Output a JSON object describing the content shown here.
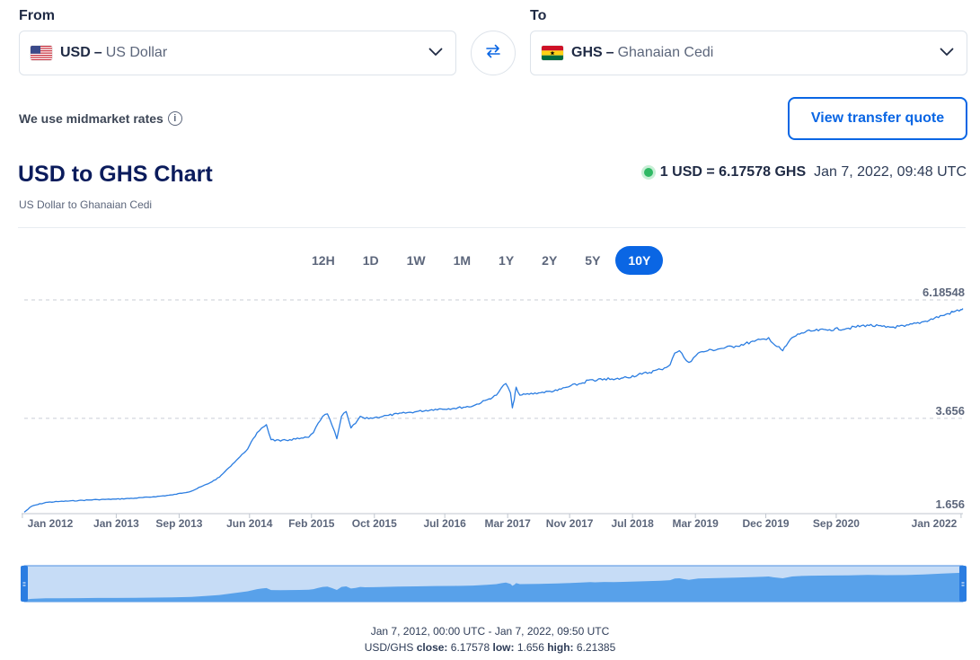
{
  "from": {
    "label": "From",
    "code": "USD",
    "sep": "–",
    "name": "US Dollar"
  },
  "to": {
    "label": "To",
    "code": "GHS",
    "sep": "–",
    "name": "Ghanaian Cedi"
  },
  "info_text": "We use midmarket rates",
  "quote_button": "View transfer quote",
  "title": "USD to GHS Chart",
  "subtitle": "US Dollar to Ghanaian Cedi",
  "rate": {
    "value": "1 USD = 6.17578 GHS",
    "time": "Jan 7, 2022, 09:48 UTC"
  },
  "ranges": [
    "12H",
    "1D",
    "1W",
    "1M",
    "1Y",
    "2Y",
    "5Y",
    "10Y"
  ],
  "active_range": "10Y",
  "colors": {
    "accent": "#0a66e4",
    "line": "#2b7de1",
    "navigator_fill": "#c6dcf6",
    "navigator_area": "#58a1ea",
    "live_dot": "#2fb964"
  },
  "chart_data": {
    "type": "line",
    "title": "USD to GHS Chart",
    "xlabel": "",
    "ylabel": "",
    "grid": true,
    "y_ticks": [
      "6.18548",
      "3.656",
      "1.656"
    ],
    "y_tick_values": [
      6.18548,
      3.656,
      1.656
    ],
    "x_ticks": [
      "Jan 2012",
      "Jan 2013",
      "Sep 2013",
      "Jun 2014",
      "Feb 2015",
      "Oct 2015",
      "Jul 2016",
      "Mar 2017",
      "Nov 2017",
      "Jul 2018",
      "Mar 2019",
      "Dec 2019",
      "Sep 2020",
      "Jan 2022"
    ],
    "x_tick_values": [
      2012.0,
      2013.0,
      2013.67,
      2014.42,
      2015.08,
      2015.75,
      2016.5,
      2017.17,
      2017.83,
      2018.5,
      2019.17,
      2019.92,
      2020.67,
      2022.0
    ],
    "x_range": [
      2012.02,
      2022.02
    ],
    "ylim": [
      1.62,
      6.3
    ],
    "series": [
      {
        "x": [
          2012.02,
          2012.1,
          2012.25,
          2012.4,
          2012.6,
          2012.8,
          2013.0,
          2013.2,
          2013.4,
          2013.6,
          2013.8,
          2014.0,
          2014.1,
          2014.2,
          2014.3,
          2014.4,
          2014.5,
          2014.55,
          2014.6,
          2014.65,
          2014.75,
          2014.85,
          2014.95,
          2015.05,
          2015.1,
          2015.15,
          2015.2,
          2015.25,
          2015.3,
          2015.35,
          2015.4,
          2015.45,
          2015.5,
          2015.55,
          2015.6,
          2015.65,
          2015.75,
          2015.9,
          2016.0,
          2016.2,
          2016.4,
          2016.6,
          2016.8,
          2016.95,
          2017.05,
          2017.1,
          2017.15,
          2017.2,
          2017.22,
          2017.24,
          2017.26,
          2017.3,
          2017.5,
          2017.7,
          2017.8,
          2017.95,
          2018.05,
          2018.1,
          2018.2,
          2018.3,
          2018.4,
          2018.6,
          2018.8,
          2018.9,
          2018.95,
          2019.0,
          2019.05,
          2019.1,
          2019.15,
          2019.2,
          2019.3,
          2019.45,
          2019.6,
          2019.8,
          2019.9,
          2019.95,
          2020.0,
          2020.1,
          2020.2,
          2020.3,
          2020.4,
          2020.6,
          2020.8,
          2021.0,
          2021.2,
          2021.4,
          2021.6,
          2021.8,
          2022.0,
          2022.02
        ],
        "values": [
          1.65,
          1.78,
          1.86,
          1.88,
          1.9,
          1.92,
          1.93,
          1.95,
          1.98,
          2.02,
          2.1,
          2.28,
          2.4,
          2.6,
          2.8,
          3.0,
          3.35,
          3.45,
          3.52,
          3.2,
          3.17,
          3.2,
          3.22,
          3.25,
          3.35,
          3.55,
          3.7,
          3.75,
          3.5,
          3.22,
          3.7,
          3.8,
          3.45,
          3.55,
          3.7,
          3.65,
          3.67,
          3.72,
          3.75,
          3.8,
          3.85,
          3.87,
          3.92,
          4.05,
          4.15,
          4.3,
          4.4,
          4.2,
          3.88,
          4.05,
          4.32,
          4.15,
          4.2,
          4.25,
          4.32,
          4.4,
          4.48,
          4.45,
          4.5,
          4.48,
          4.52,
          4.6,
          4.7,
          4.8,
          5.05,
          5.1,
          4.95,
          4.85,
          4.95,
          5.05,
          5.1,
          5.15,
          5.2,
          5.3,
          5.35,
          5.38,
          5.25,
          5.1,
          5.38,
          5.48,
          5.52,
          5.55,
          5.58,
          5.65,
          5.6,
          5.62,
          5.72,
          5.85,
          5.98,
          6.0
        ]
      }
    ]
  },
  "navigator": {
    "start": 0.0,
    "end": 1.0
  },
  "footer": {
    "range_text": "Jan 7, 2012, 00:00 UTC - Jan 7, 2022, 09:50 UTC",
    "pair": "USD/GHS",
    "close_label": "close:",
    "close_value": "6.17578",
    "low_label": "low:",
    "low_value": "1.656",
    "high_label": "high:",
    "high_value": "6.21385"
  }
}
